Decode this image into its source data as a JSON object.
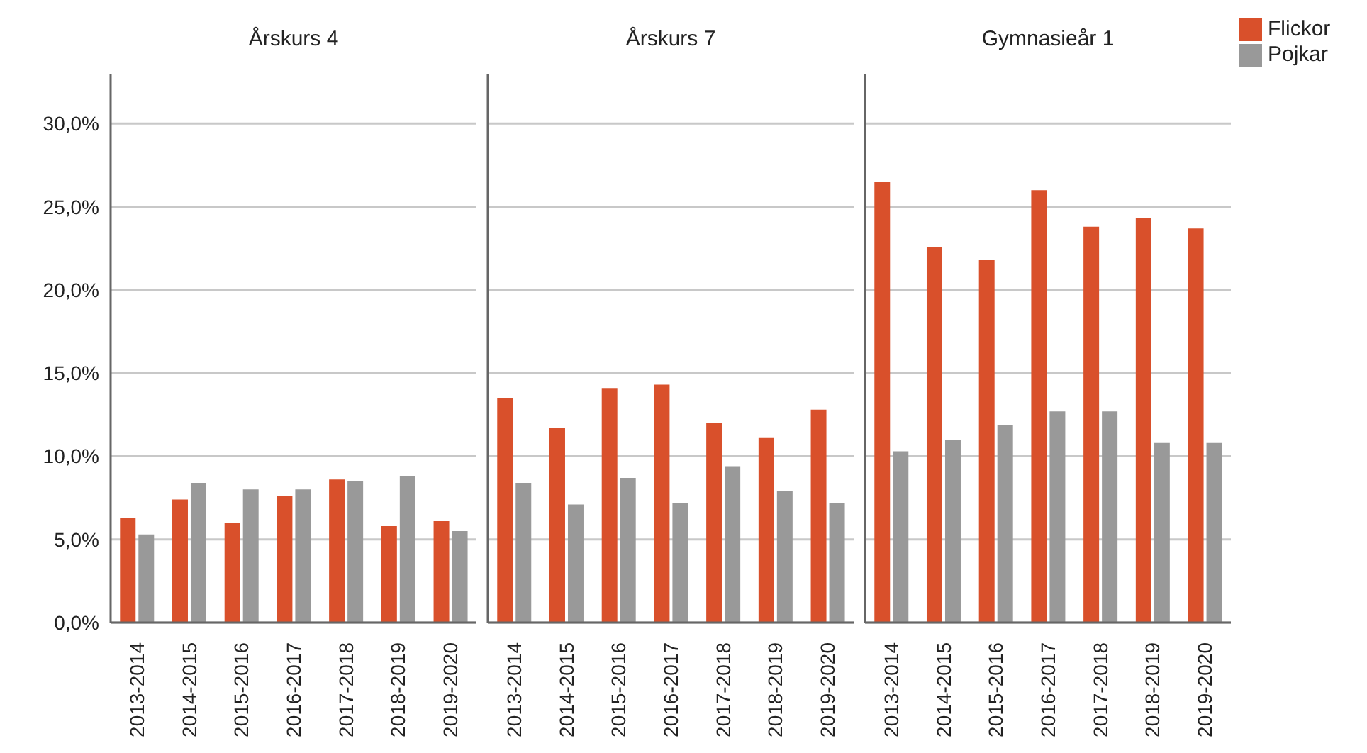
{
  "chart_data": [
    {
      "type": "bar",
      "title": "Årskurs 4",
      "categories": [
        "2013-2014",
        "2014-2015",
        "2015-2016",
        "2016-2017",
        "2017-2018",
        "2018-2019",
        "2019-2020"
      ],
      "series": [
        {
          "color": "#d9502b",
          "values": [
            6.3,
            7.4,
            6.0,
            7.6,
            8.6,
            5.8,
            6.1
          ]
        },
        {
          "color": "#999999",
          "values": [
            5.3,
            8.4,
            8.0,
            8.0,
            8.5,
            8.8,
            5.5
          ]
        }
      ],
      "ylim": [
        0,
        33
      ],
      "yticks": [
        {
          "value": 0,
          "label": "0,0%"
        },
        {
          "value": 5,
          "label": "5,0%"
        },
        {
          "value": 10,
          "label": "10,0%"
        },
        {
          "value": 15,
          "label": "15,0%"
        },
        {
          "value": 20,
          "label": "20,0%"
        },
        {
          "value": 25,
          "label": "25,0%"
        },
        {
          "value": 30,
          "label": "30,0%"
        }
      ],
      "grid": "y"
    },
    {
      "type": "bar",
      "title": "Årskurs 7",
      "categories": [
        "2013-2014",
        "2014-2015",
        "2015-2016",
        "2016-2017",
        "2017-2018",
        "2018-2019",
        "2019-2020"
      ],
      "series": [
        {
          "color": "#d9502b",
          "values": [
            13.5,
            11.7,
            14.1,
            14.3,
            12.0,
            11.1,
            12.8
          ]
        },
        {
          "color": "#999999",
          "values": [
            8.4,
            7.1,
            8.7,
            7.2,
            9.4,
            7.9,
            7.2
          ]
        }
      ],
      "ylim": [
        0,
        33
      ],
      "yticks": [
        0,
        5,
        10,
        15,
        20,
        25,
        30
      ],
      "grid": "y",
      "tick_labels": "x"
    },
    {
      "type": "bar",
      "title": "Gymnasieår 1",
      "categories": [
        "2013-2014",
        "2014-2015",
        "2015-2016",
        "2016-2017",
        "2017-2018",
        "2018-2019",
        "2019-2020"
      ],
      "series": [
        {
          "name": "Flickor",
          "color": "#d9502b",
          "values": [
            26.5,
            22.6,
            21.8,
            26.0,
            23.8,
            24.3,
            23.7
          ]
        },
        {
          "name": "Pojkar",
          "color": "#999999",
          "values": [
            10.3,
            11.0,
            11.9,
            12.7,
            12.7,
            10.8,
            10.8
          ]
        }
      ],
      "ylim": [
        0,
        33
      ],
      "yticks": [
        0,
        5,
        10,
        15,
        20,
        25,
        30
      ],
      "grid": "y",
      "tick_labels": "x",
      "legend": "top right"
    }
  ]
}
